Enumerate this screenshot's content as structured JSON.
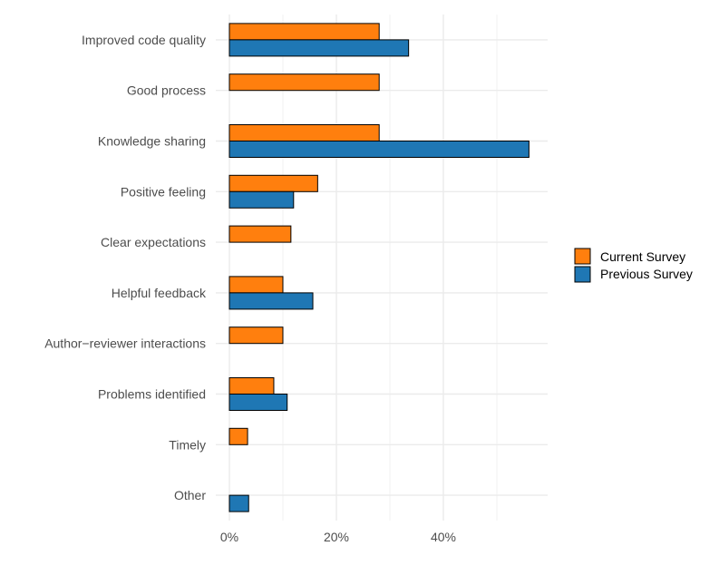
{
  "chart_data": {
    "type": "bar",
    "orientation": "horizontal",
    "title": "",
    "xlabel": "",
    "ylabel": "",
    "categories": [
      "Improved code quality",
      "Good process",
      "Knowledge sharing",
      "Positive feeling",
      "Clear expectations",
      "Helpful feedback",
      "Author−reviewer interactions",
      "Problems identified",
      "Timely",
      "Other"
    ],
    "series": [
      {
        "name": "Current Survey",
        "color": "#ff7f0e",
        "values": [
          28,
          28,
          28,
          16.5,
          11.5,
          10,
          10,
          8.3,
          3.4,
          0
        ]
      },
      {
        "name": "Previous Survey",
        "color": "#1f77b4",
        "values": [
          33.5,
          0,
          56,
          12,
          0,
          15.6,
          0,
          10.8,
          0,
          3.6
        ]
      }
    ],
    "xlim": [
      -2,
      59
    ],
    "xticks": [
      0,
      20,
      40
    ],
    "xtick_labels": [
      "0%",
      "20%",
      "40%"
    ],
    "grid": true,
    "legend_position": "right"
  }
}
